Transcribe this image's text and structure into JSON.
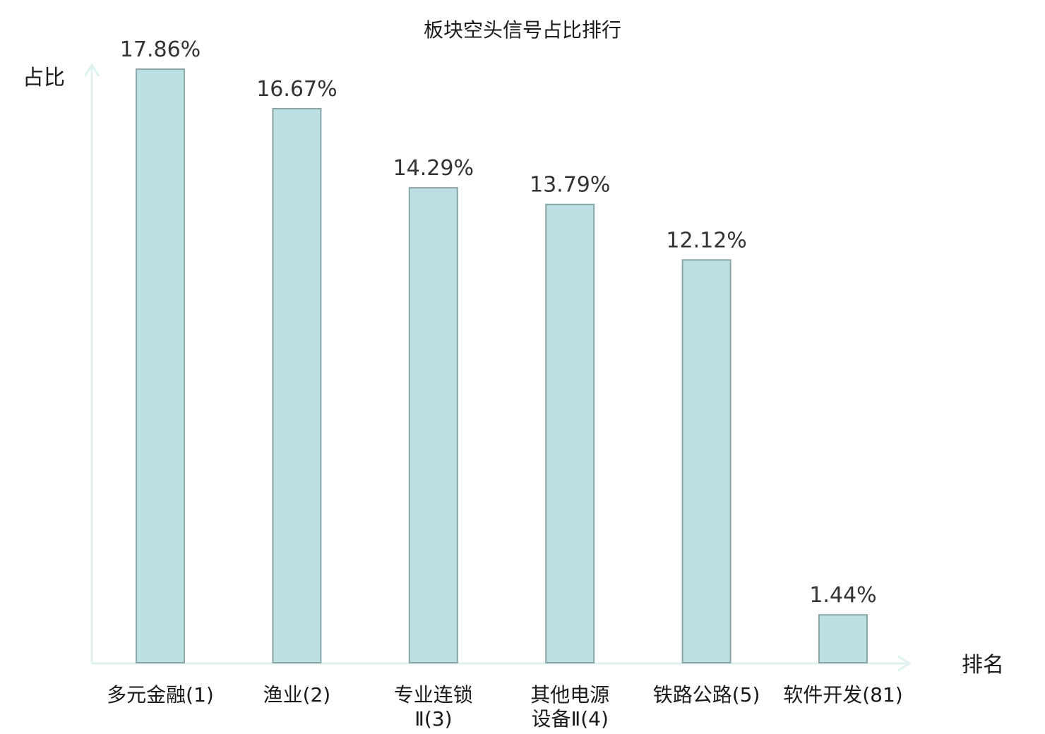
{
  "chart_data": {
    "type": "bar",
    "title": "板块空头信号占比排行",
    "ylabel": "占比",
    "xlabel": "排名",
    "categories": [
      [
        "多元金融(1)"
      ],
      [
        "渔业(2)"
      ],
      [
        "专业连锁",
        "Ⅱ(3)"
      ],
      [
        "其他电源",
        "设备Ⅱ(4)"
      ],
      [
        "铁路公路(5)"
      ],
      [
        "软件开发(81)"
      ]
    ],
    "values": [
      17.86,
      16.67,
      14.29,
      13.79,
      12.12,
      1.44
    ],
    "value_labels": [
      "17.86%",
      "16.67%",
      "14.29%",
      "13.79%",
      "12.12%",
      "1.44%"
    ],
    "highlight_index": 5,
    "ylim": [
      0,
      17.86
    ],
    "grid": false,
    "colors": {
      "bar": "#bde0e3",
      "bar_border": "#8aa6a8",
      "axis": "#dff2ef",
      "highlight_text": "#e31b1b",
      "text": "#1a1a1a",
      "value_text": "#333333"
    }
  }
}
